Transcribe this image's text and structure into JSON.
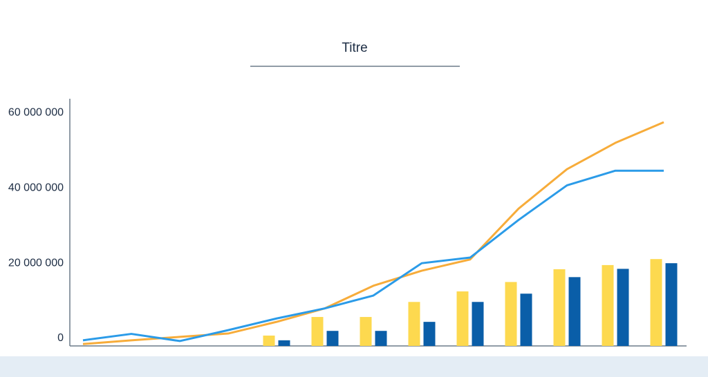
{
  "chart_data": {
    "type": "bar",
    "title": "Titre",
    "categories": [
      null,
      null,
      null,
      null,
      null,
      null,
      null,
      null,
      null,
      null,
      null,
      null,
      null
    ],
    "series": [
      {
        "type": "bar",
        "color": "#fdd94f",
        "values": [
          null,
          null,
          null,
          null,
          2750000,
          7700000,
          7700000,
          11700000,
          14500000,
          17000000,
          20400000,
          21500000,
          23100000
        ]
      },
      {
        "type": "bar",
        "color": "#0a5ea8",
        "values": [
          null,
          null,
          null,
          null,
          1500000,
          4000000,
          4000000,
          6400000,
          11700000,
          13900000,
          18300000,
          20500000,
          22000000
        ]
      },
      {
        "type": "line",
        "color": "#f7ac3a",
        "values": [
          500000,
          1500000,
          2400000,
          3300000,
          6400000,
          10000000,
          16000000,
          20000000,
          23000000,
          36500000,
          47000000,
          54000000,
          59500000
        ]
      },
      {
        "type": "line",
        "color": "#2b9be8",
        "values": [
          1500000,
          3200000,
          1300000,
          4200000,
          7300000,
          10000000,
          13400000,
          22000000,
          23500000,
          33500000,
          42700000,
          46600000,
          46600000
        ]
      }
    ],
    "ylim": [
      0,
      65000000
    ],
    "yticks": [
      0,
      {
        "value": 20000000,
        "label": "20 000 000"
      },
      {
        "value": 40000000,
        "label": "40 000 000"
      },
      {
        "value": 60000000,
        "label": "60 000 000"
      }
    ],
    "grid": false
  }
}
